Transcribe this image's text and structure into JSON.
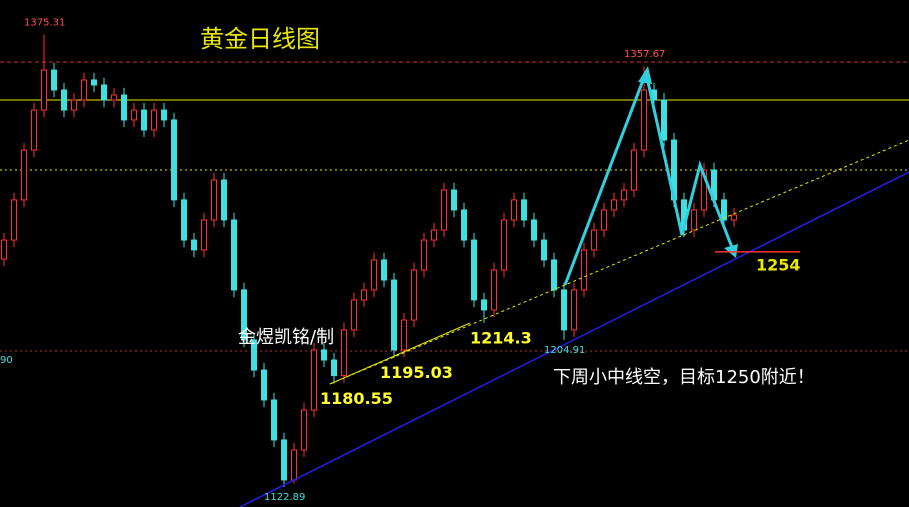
{
  "chart_data": {
    "type": "candlestick",
    "title": "黄金日线图",
    "watermark": "金煜凯铭/制",
    "note": "下周小中线空，目标1250附近！",
    "axis_fragment": "90",
    "target": 1254,
    "ylim": [
      1111.7,
      1394.5
    ],
    "up_color": "#ff3030",
    "down_color": "#40e0e0",
    "levels": [
      {
        "value": 1359.9,
        "color": "#d03030",
        "style": "dashed"
      },
      {
        "value": 1338.7,
        "color": "#e8e800",
        "style": "solid"
      },
      {
        "value": 1299.7,
        "color": "#e8e800",
        "style": "dotted"
      },
      {
        "value": 1198.7,
        "color": "#b03030",
        "style": "dotted"
      }
    ],
    "open": [
      1250.0,
      1260.6,
      1283.0,
      1310.8,
      1333.1,
      1355.4,
      1344.3,
      1333.1,
      1338.7,
      1349.9,
      1347.1,
      1338.7,
      1341.5,
      1327.6,
      1333.1,
      1322.0,
      1333.1,
      1327.6,
      1283.0,
      1260.6,
      1255.1,
      1271.8,
      1294.1,
      1271.8,
      1232.8,
      1204.9,
      1188.1,
      1171.4,
      1149.1,
      1126.8,
      1143.5,
      1165.8,
      1199.3,
      1193.7,
      1185.0,
      1210.5,
      1227.2,
      1232.8,
      1249.5,
      1238.3,
      1199.3,
      1216.0,
      1243.9,
      1260.6,
      1266.2,
      1288.5,
      1277.4,
      1260.6,
      1227.2,
      1221.6,
      1243.9,
      1271.8,
      1283.0,
      1271.8,
      1260.6,
      1249.5,
      1232.8,
      1210.5,
      1232.8,
      1255.1,
      1266.2,
      1277.4,
      1283.0,
      1288.5,
      1310.8,
      1344.3,
      1338.7,
      1316.4,
      1283.0,
      1266.2,
      1277.4,
      1299.7,
      1283.0,
      1271.8
    ],
    "high": [
      1264.6,
      1287.0,
      1314.8,
      1337.1,
      1375.31,
      1359.4,
      1348.3,
      1342.7,
      1353.9,
      1353.9,
      1351.1,
      1345.5,
      1345.5,
      1337.1,
      1337.1,
      1337.1,
      1337.1,
      1331.6,
      1287.0,
      1264.6,
      1275.8,
      1298.1,
      1298.1,
      1275.8,
      1236.8,
      1208.9,
      1192.1,
      1175.4,
      1153.1,
      1147.5,
      1169.8,
      1203.3,
      1203.3,
      1197.7,
      1214.5,
      1231.2,
      1236.8,
      1253.5,
      1253.5,
      1242.3,
      1220.0,
      1247.9,
      1264.6,
      1270.2,
      1292.5,
      1292.5,
      1281.4,
      1264.6,
      1231.2,
      1247.9,
      1275.8,
      1287.0,
      1287.0,
      1275.8,
      1264.6,
      1253.5,
      1236.8,
      1236.8,
      1259.1,
      1270.2,
      1281.4,
      1287.0,
      1292.5,
      1314.8,
      1357.67,
      1348.3,
      1342.7,
      1320.4,
      1287.0,
      1281.4,
      1303.7,
      1303.7,
      1287.0,
      1278.6
    ],
    "low": [
      1246.0,
      1256.6,
      1279.0,
      1306.8,
      1329.1,
      1340.3,
      1329.1,
      1329.1,
      1334.7,
      1343.1,
      1334.7,
      1334.7,
      1323.6,
      1323.6,
      1318.0,
      1318.0,
      1323.6,
      1279.0,
      1256.6,
      1251.1,
      1251.1,
      1267.8,
      1267.8,
      1228.8,
      1200.9,
      1184.1,
      1167.4,
      1145.1,
      1122.89,
      1124.8,
      1139.5,
      1161.8,
      1189.7,
      1180.55,
      1181.0,
      1206.5,
      1223.2,
      1228.8,
      1234.3,
      1195.03,
      1195.3,
      1212.0,
      1239.9,
      1256.6,
      1262.2,
      1273.4,
      1256.6,
      1223.2,
      1214.3,
      1217.6,
      1239.9,
      1267.8,
      1267.8,
      1256.6,
      1245.5,
      1228.8,
      1204.91,
      1206.5,
      1228.8,
      1251.1,
      1262.2,
      1273.4,
      1279.0,
      1284.5,
      1306.8,
      1334.7,
      1312.4,
      1279.0,
      1262.2,
      1262.2,
      1273.4,
      1279.0,
      1267.8,
      1267.8
    ],
    "close": [
      1260.6,
      1283.0,
      1310.8,
      1333.1,
      1355.4,
      1344.3,
      1333.1,
      1338.7,
      1349.9,
      1347.1,
      1338.7,
      1341.5,
      1327.6,
      1333.1,
      1322.0,
      1333.1,
      1327.6,
      1283.0,
      1260.6,
      1255.1,
      1271.8,
      1294.1,
      1271.8,
      1232.8,
      1204.9,
      1188.1,
      1171.4,
      1149.1,
      1126.8,
      1143.5,
      1165.8,
      1199.3,
      1193.7,
      1185.0,
      1210.5,
      1227.2,
      1232.8,
      1249.5,
      1238.3,
      1199.3,
      1216.0,
      1243.9,
      1260.6,
      1266.2,
      1288.5,
      1277.4,
      1260.6,
      1227.2,
      1221.6,
      1243.9,
      1271.8,
      1283.0,
      1271.8,
      1260.6,
      1249.5,
      1232.8,
      1210.5,
      1232.8,
      1255.1,
      1266.2,
      1277.4,
      1283.0,
      1288.5,
      1310.8,
      1344.3,
      1338.7,
      1316.4,
      1283.0,
      1266.2,
      1277.4,
      1299.7,
      1283.0,
      1271.8,
      1274.6
    ]
  }
}
